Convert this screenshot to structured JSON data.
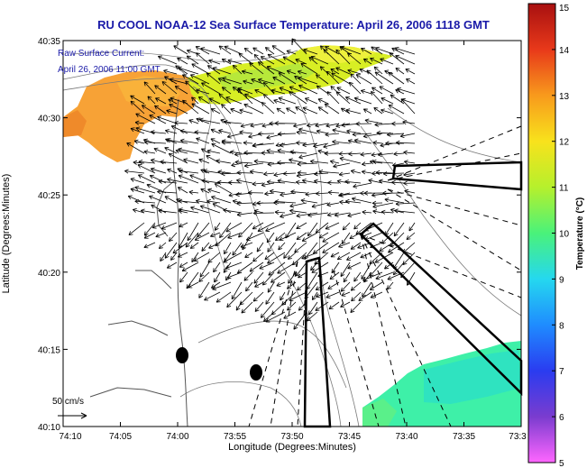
{
  "title": "RU COOL  NOAA-12  Sea Surface Temperature:  April 26, 2006 1118 GMT",
  "inset": {
    "line1": "Raw Surface Current:",
    "line2": "April 26, 2006 11:00 GMT"
  },
  "axes": {
    "xlabel": "Longitude (Degrees:Minutes)",
    "ylabel": "Latitude (Degrees:Minutes)",
    "xticks": [
      "74:10",
      "74:05",
      "74:00",
      "73:55",
      "73:50",
      "73:45",
      "73:40",
      "73:35",
      "73:3"
    ],
    "yticks": [
      "40:35",
      "40:30",
      "40:25",
      "40:20",
      "40:15",
      "40:10"
    ]
  },
  "scale_arrow": {
    "label": "50 cm/s"
  },
  "colorbar": {
    "label": "Temperature (°C)",
    "ticks": [
      "15",
      "14",
      "13",
      "12",
      "11",
      "10",
      "9",
      "8",
      "7",
      "6",
      "5"
    ],
    "min": 5,
    "max": 15,
    "colors": [
      "#ff66ff",
      "#7a3ccf",
      "#2a3cf0",
      "#1f8cff",
      "#25d8ef",
      "#4af27a",
      "#b6f02c",
      "#f8e21c",
      "#f89a1c",
      "#e8391a",
      "#a81010"
    ]
  },
  "icons": {
    "arrow": "current-vector",
    "dot": "station-dot"
  }
}
